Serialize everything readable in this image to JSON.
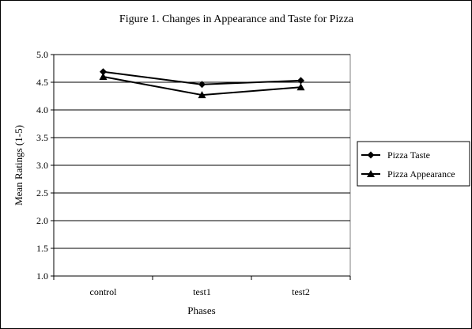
{
  "chart_data": {
    "type": "line",
    "title": "Figure 1. Changes in Appearance and Taste for Pizza",
    "xlabel": "Phases",
    "ylabel": "Mean Ratings (1-5)",
    "categories": [
      "control",
      "test1",
      "test2"
    ],
    "ylim": [
      1.0,
      5.0
    ],
    "yticks": [
      "1.0",
      "1.5",
      "2.0",
      "2.5",
      "3.0",
      "3.5",
      "4.0",
      "4.5",
      "5.0"
    ],
    "grid": "horizontal",
    "legend_position": "right",
    "series": [
      {
        "name": "Pizza Taste",
        "marker": "diamond",
        "color": "#000000",
        "values": [
          4.69,
          4.46,
          4.53
        ]
      },
      {
        "name": "Pizza Appearance",
        "marker": "triangle",
        "color": "#000000",
        "values": [
          4.6,
          4.27,
          4.41
        ]
      }
    ]
  }
}
